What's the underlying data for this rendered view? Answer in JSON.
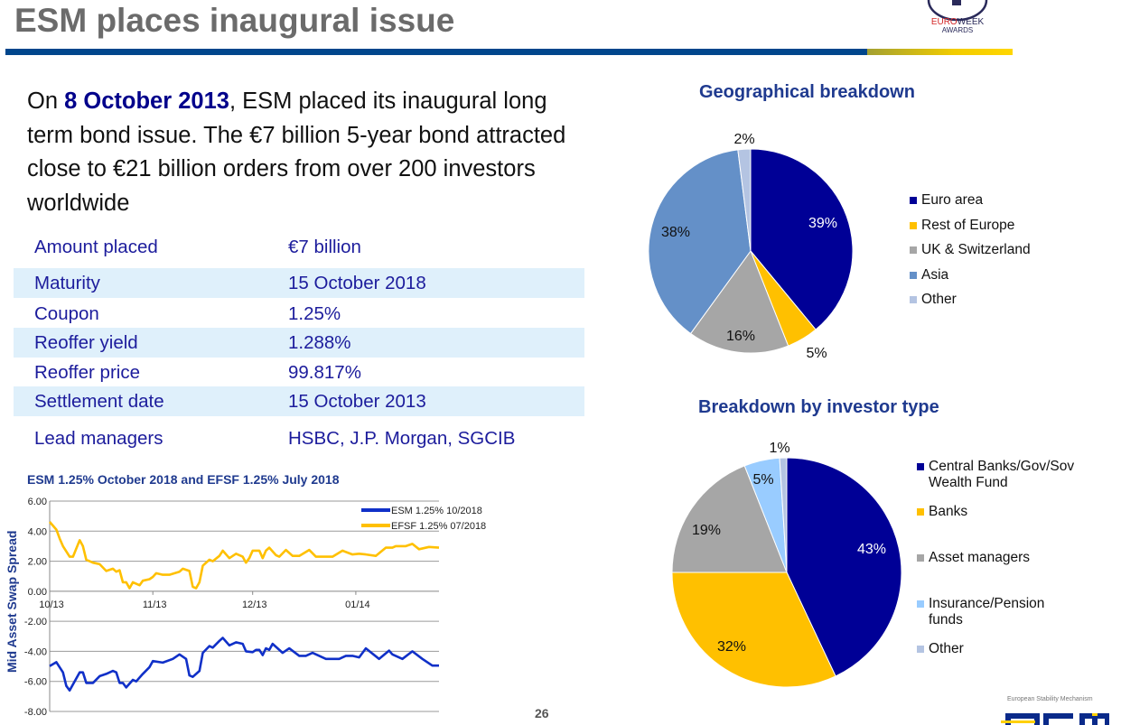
{
  "header": {
    "title": "ESM places inaugural issue",
    "award_logo_text": "EUROWEEK AWARDS",
    "accent_blue": "#00468c",
    "accent_gold": "#ffd600"
  },
  "intro": {
    "prefix": "On ",
    "date": "8 October 2013",
    "rest": ", ESM placed its inaugural long term bond issue. The €7 billion 5-year bond attracted close to €21 billion orders from over 200 investors worldwide"
  },
  "terms": [
    {
      "label": "Amount placed",
      "value": "€7 billion"
    },
    {
      "label": "Maturity",
      "value": "15 October 2018"
    },
    {
      "label": "Coupon",
      "value": "1.25%"
    },
    {
      "label": "Reoffer yield",
      "value": "1.288%"
    },
    {
      "label": "Reoffer price",
      "value": "99.817%"
    },
    {
      "label": "Settlement date",
      "value": "15 October 2013"
    },
    {
      "label": "Lead managers",
      "value": "HSBC, J.P. Morgan, SGCIB"
    }
  ],
  "footer": {
    "page_number": "26",
    "logo_caption": "European Stability Mechanism",
    "logo_text": "esm"
  },
  "chart_data": [
    {
      "type": "line",
      "title": "ESM 1.25% October 2018 and EFSF 1.25% July 2018",
      "ylabel": "Mid Asset Swap Spread",
      "xlabel": "",
      "ylim": [
        -8,
        6
      ],
      "yticks": [
        "6.00",
        "4.00",
        "2.00",
        "0.00",
        "-2.00",
        "-4.00",
        "-6.00",
        "-8.00"
      ],
      "xticks": [
        {
          "date": "2013-10-01",
          "label": "10/13"
        },
        {
          "date": "2013-11-01",
          "label": "11/13"
        },
        {
          "date": "2013-12-01",
          "label": "12/13"
        },
        {
          "date": "2014-01-01",
          "label": "01/14"
        }
      ],
      "xlim": [
        "2013-10-01",
        "2014-01-26"
      ],
      "grid": true,
      "legend": "top-right",
      "series": [
        {
          "name": "ESM 1.25% 10/2018",
          "color": "#1030c8",
          "points": [
            [
              "2013-10-01",
              -4.98
            ],
            [
              "2013-10-03",
              -4.72
            ],
            [
              "2013-10-05",
              -5.4
            ],
            [
              "2013-10-06",
              -6.3
            ],
            [
              "2013-10-07",
              -6.6
            ],
            [
              "2013-10-09",
              -5.8
            ],
            [
              "2013-10-10",
              -5.4
            ],
            [
              "2013-10-11",
              -5.4
            ],
            [
              "2013-10-12",
              -6.1
            ],
            [
              "2013-10-14",
              -6.1
            ],
            [
              "2013-10-16",
              -5.65
            ],
            [
              "2013-10-18",
              -5.5
            ],
            [
              "2013-10-20",
              -5.3
            ],
            [
              "2013-10-21",
              -5.4
            ],
            [
              "2013-10-22",
              -6.1
            ],
            [
              "2013-10-23",
              -6.1
            ],
            [
              "2013-10-24",
              -6.4
            ],
            [
              "2013-10-26",
              -5.9
            ],
            [
              "2013-10-27",
              -6.0
            ],
            [
              "2013-10-29",
              -5.5
            ],
            [
              "2013-10-31",
              -5.05
            ],
            [
              "2013-11-01",
              -4.65
            ],
            [
              "2013-11-04",
              -4.75
            ],
            [
              "2013-11-07",
              -4.5
            ],
            [
              "2013-11-09",
              -4.2
            ],
            [
              "2013-11-11",
              -4.5
            ],
            [
              "2013-11-12",
              -5.6
            ],
            [
              "2013-11-13",
              -5.7
            ],
            [
              "2013-11-15",
              -5.3
            ],
            [
              "2013-11-16",
              -4.1
            ],
            [
              "2013-11-18",
              -3.65
            ],
            [
              "2013-11-19",
              -3.75
            ],
            [
              "2013-11-21",
              -3.3
            ],
            [
              "2013-11-22",
              -3.1
            ],
            [
              "2013-11-24",
              -3.6
            ],
            [
              "2013-11-26",
              -3.4
            ],
            [
              "2013-11-28",
              -3.5
            ],
            [
              "2013-11-29",
              -4.0
            ],
            [
              "2013-12-01",
              -4.05
            ],
            [
              "2013-12-02",
              -3.9
            ],
            [
              "2013-12-03",
              -3.9
            ],
            [
              "2013-12-04",
              -4.25
            ],
            [
              "2013-12-05",
              -3.8
            ],
            [
              "2013-12-06",
              -3.9
            ],
            [
              "2013-12-07",
              -3.5
            ],
            [
              "2013-12-10",
              -4.1
            ],
            [
              "2013-12-12",
              -3.8
            ],
            [
              "2013-12-15",
              -4.3
            ],
            [
              "2013-12-17",
              -4.3
            ],
            [
              "2013-12-19",
              -4.1
            ],
            [
              "2013-12-23",
              -4.5
            ],
            [
              "2013-12-27",
              -4.5
            ],
            [
              "2013-12-29",
              -4.3
            ],
            [
              "2013-12-31",
              -4.3
            ],
            [
              "2014-01-02",
              -4.4
            ],
            [
              "2014-01-04",
              -3.8
            ],
            [
              "2014-01-08",
              -4.5
            ],
            [
              "2014-01-11",
              -3.95
            ],
            [
              "2014-01-12",
              -4.2
            ],
            [
              "2014-01-15",
              -4.5
            ],
            [
              "2014-01-18",
              -4.0
            ],
            [
              "2014-01-21",
              -4.5
            ],
            [
              "2014-01-24",
              -4.95
            ],
            [
              "2014-01-26",
              -4.95
            ]
          ]
        },
        {
          "name": "EFSF 1.25% 07/2018",
          "color": "#ffc000",
          "points": [
            [
              "2013-10-01",
              4.62
            ],
            [
              "2013-10-03",
              4.1
            ],
            [
              "2013-10-04",
              3.5
            ],
            [
              "2013-10-05",
              3.0
            ],
            [
              "2013-10-07",
              2.3
            ],
            [
              "2013-10-08",
              2.3
            ],
            [
              "2013-10-10",
              3.4
            ],
            [
              "2013-10-11",
              3.0
            ],
            [
              "2013-10-12",
              2.1
            ],
            [
              "2013-10-14",
              1.9
            ],
            [
              "2013-10-16",
              1.8
            ],
            [
              "2013-10-18",
              1.35
            ],
            [
              "2013-10-20",
              1.5
            ],
            [
              "2013-10-21",
              1.3
            ],
            [
              "2013-10-22",
              1.4
            ],
            [
              "2013-10-23",
              0.6
            ],
            [
              "2013-10-24",
              0.6
            ],
            [
              "2013-10-25",
              0.2
            ],
            [
              "2013-10-26",
              0.6
            ],
            [
              "2013-10-28",
              0.4
            ],
            [
              "2013-10-29",
              0.7
            ],
            [
              "2013-10-31",
              0.8
            ],
            [
              "2013-11-01",
              0.95
            ],
            [
              "2013-11-02",
              1.2
            ],
            [
              "2013-11-04",
              1.1
            ],
            [
              "2013-11-06",
              1.1
            ],
            [
              "2013-11-09",
              1.3
            ],
            [
              "2013-11-10",
              1.5
            ],
            [
              "2013-11-12",
              1.35
            ],
            [
              "2013-11-13",
              0.3
            ],
            [
              "2013-11-14",
              0.2
            ],
            [
              "2013-11-15",
              0.6
            ],
            [
              "2013-11-16",
              1.7
            ],
            [
              "2013-11-18",
              2.1
            ],
            [
              "2013-11-19",
              2.0
            ],
            [
              "2013-11-21",
              2.35
            ],
            [
              "2013-11-22",
              2.7
            ],
            [
              "2013-11-24",
              2.2
            ],
            [
              "2013-11-26",
              2.5
            ],
            [
              "2013-11-28",
              2.3
            ],
            [
              "2013-11-29",
              1.9
            ],
            [
              "2013-11-30",
              2.2
            ],
            [
              "2013-12-01",
              2.7
            ],
            [
              "2013-12-03",
              2.7
            ],
            [
              "2013-12-04",
              2.2
            ],
            [
              "2013-12-05",
              2.7
            ],
            [
              "2013-12-06",
              2.9
            ],
            [
              "2013-12-08",
              2.4
            ],
            [
              "2013-12-09",
              2.3
            ],
            [
              "2013-12-11",
              2.75
            ],
            [
              "2013-12-13",
              2.35
            ],
            [
              "2013-12-15",
              2.35
            ],
            [
              "2013-12-18",
              2.75
            ],
            [
              "2013-12-20",
              2.3
            ],
            [
              "2013-12-23",
              2.3
            ],
            [
              "2013-12-25",
              2.3
            ],
            [
              "2013-12-28",
              2.7
            ],
            [
              "2013-12-31",
              2.45
            ],
            [
              "2014-01-02",
              2.5
            ],
            [
              "2014-01-04",
              2.45
            ],
            [
              "2014-01-07",
              2.35
            ],
            [
              "2014-01-10",
              2.9
            ],
            [
              "2014-01-12",
              2.9
            ],
            [
              "2014-01-13",
              3.0
            ],
            [
              "2014-01-16",
              3.0
            ],
            [
              "2014-01-18",
              3.15
            ],
            [
              "2014-01-20",
              2.8
            ],
            [
              "2014-01-23",
              2.95
            ],
            [
              "2014-01-26",
              2.9
            ]
          ]
        }
      ]
    },
    {
      "type": "pie",
      "title": "Geographical breakdown",
      "legend": "right",
      "slices": [
        {
          "label": "Euro area",
          "value": 39,
          "text": "39%",
          "color": "#000096"
        },
        {
          "label": "Rest of Europe",
          "value": 5,
          "text": "5%",
          "color": "#ffc000"
        },
        {
          "label": "UK & Switzerland",
          "value": 16,
          "text": "16%",
          "color": "#a6a6a6"
        },
        {
          "label": "Asia",
          "value": 38,
          "text": "38%",
          "color": "#6490c8"
        },
        {
          "label": "Other",
          "value": 2,
          "text": "2%",
          "color": "#b4c4e2"
        }
      ]
    },
    {
      "type": "pie",
      "title": "Breakdown by investor type",
      "legend": "right",
      "slices": [
        {
          "label": "Central Banks/Gov/Sov Wealth Fund",
          "value": 43,
          "text": "43%",
          "color": "#000096"
        },
        {
          "label": "Banks",
          "value": 32,
          "text": "32%",
          "color": "#ffc000"
        },
        {
          "label": "Asset managers",
          "value": 19,
          "text": "19%",
          "color": "#a6a6a6"
        },
        {
          "label": "Insurance/Pension funds",
          "value": 5,
          "text": "5%",
          "color": "#99ccff"
        },
        {
          "label": "Other",
          "value": 1,
          "text": "1%",
          "color": "#b4c4e2"
        }
      ]
    }
  ]
}
